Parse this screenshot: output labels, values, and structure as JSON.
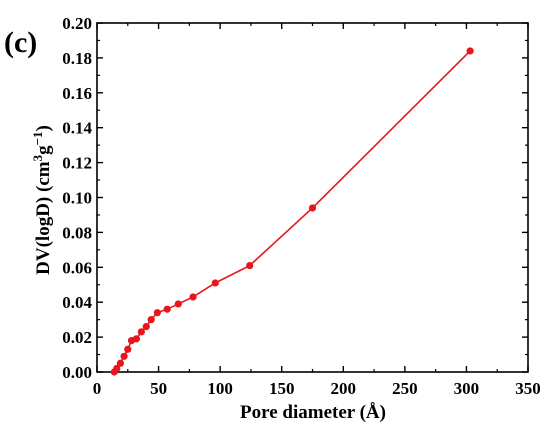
{
  "panel_label": "(c)",
  "chart_data": {
    "type": "line",
    "xlabel": "Pore diameter (Å)",
    "ylabel_main": "DV(logD) (cm",
    "ylabel_sup1": "3",
    "ylabel_mid": "g",
    "ylabel_sup2": "−1",
    "ylabel_end": ")",
    "xlim": [
      0,
      350
    ],
    "ylim": [
      0,
      0.2
    ],
    "x_ticks": [
      0,
      50,
      100,
      150,
      200,
      250,
      300,
      350
    ],
    "y_ticks": [
      0,
      0.02,
      0.04,
      0.06,
      0.08,
      0.1,
      0.12,
      0.14,
      0.16,
      0.18,
      0.2
    ],
    "x_tick_labels": [
      "0",
      "50",
      "100",
      "150",
      "200",
      "250",
      "300",
      "350"
    ],
    "y_tick_labels": [
      "0.00",
      "0.02",
      "0.04",
      "0.06",
      "0.08",
      "0.10",
      "0.12",
      "0.14",
      "0.16",
      "0.18",
      "0.20"
    ],
    "line_color": "#e8161b",
    "series": [
      {
        "x": [
          14,
          16,
          19,
          22,
          25,
          28,
          32,
          36,
          40,
          44,
          49,
          57,
          66,
          78,
          96,
          124,
          175,
          303
        ],
        "y": [
          0.0,
          0.002,
          0.005,
          0.009,
          0.013,
          0.018,
          0.019,
          0.023,
          0.026,
          0.03,
          0.034,
          0.036,
          0.039,
          0.043,
          0.051,
          0.061,
          0.094,
          0.184
        ]
      }
    ]
  }
}
